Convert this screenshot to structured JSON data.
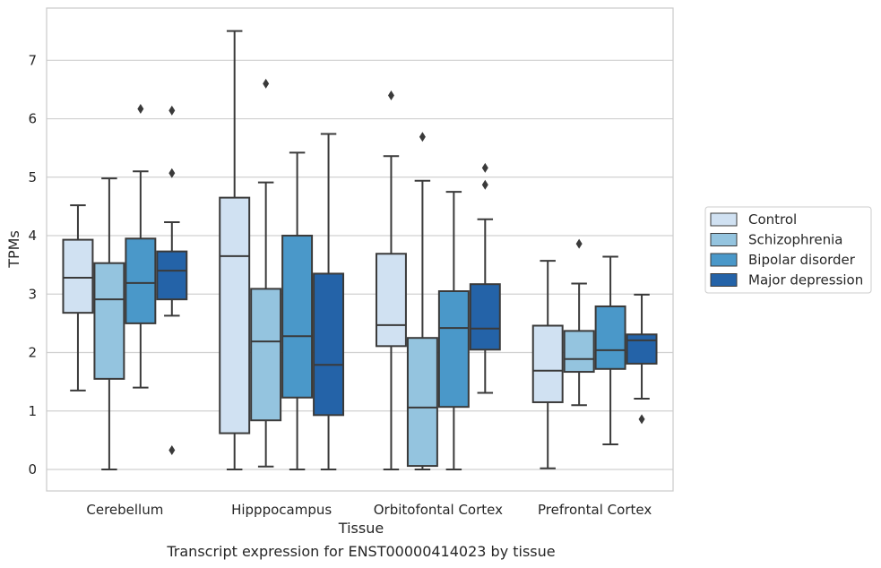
{
  "chart_data": {
    "type": "box",
    "xlabel": "Tissue",
    "ylabel": "TPMs",
    "caption": "Transcript expression for ENST00000414023 by tissue",
    "ylim": [
      -0.35,
      7.9
    ],
    "yticks": [
      0,
      1,
      2,
      3,
      4,
      5,
      6,
      7
    ],
    "grid": "horizontal",
    "legend_position": "right",
    "categories": [
      "Cerebellum",
      "Hipppocampus",
      "Orbitofontal Cortex",
      "Prefrontal Cortex"
    ],
    "series": [
      {
        "name": "Control",
        "color": "#d0e1f2",
        "boxes": [
          {
            "whisker_low": 1.35,
            "q1": 2.68,
            "median": 3.28,
            "q3": 3.93,
            "whisker_high": 4.52,
            "outliers": []
          },
          {
            "whisker_low": 0.0,
            "q1": 0.62,
            "median": 3.65,
            "q3": 4.65,
            "whisker_high": 7.5,
            "outliers": []
          },
          {
            "whisker_low": 0.0,
            "q1": 2.11,
            "median": 2.47,
            "q3": 3.69,
            "whisker_high": 5.36,
            "outliers": [
              6.4
            ]
          },
          {
            "whisker_low": 0.02,
            "q1": 1.15,
            "median": 1.69,
            "q3": 2.46,
            "whisker_high": 3.57,
            "outliers": []
          }
        ]
      },
      {
        "name": "Schizophrenia",
        "color": "#94c4df",
        "boxes": [
          {
            "whisker_low": 0.0,
            "q1": 1.55,
            "median": 2.91,
            "q3": 3.53,
            "whisker_high": 4.98,
            "outliers": []
          },
          {
            "whisker_low": 0.05,
            "q1": 0.84,
            "median": 2.19,
            "q3": 3.09,
            "whisker_high": 4.91,
            "outliers": [
              6.6
            ]
          },
          {
            "whisker_low": 0.0,
            "q1": 0.06,
            "median": 1.06,
            "q3": 2.25,
            "whisker_high": 4.94,
            "outliers": [
              5.69
            ]
          },
          {
            "whisker_low": 1.1,
            "q1": 1.67,
            "median": 1.89,
            "q3": 2.37,
            "whisker_high": 3.18,
            "outliers": [
              3.86
            ]
          }
        ]
      },
      {
        "name": "Bipolar disorder",
        "color": "#4a98c9",
        "boxes": [
          {
            "whisker_low": 1.4,
            "q1": 2.5,
            "median": 3.19,
            "q3": 3.95,
            "whisker_high": 5.1,
            "outliers": [
              6.17
            ]
          },
          {
            "whisker_low": 0.0,
            "q1": 1.23,
            "median": 2.28,
            "q3": 4.0,
            "whisker_high": 5.42,
            "outliers": []
          },
          {
            "whisker_low": 0.0,
            "q1": 1.07,
            "median": 2.42,
            "q3": 3.05,
            "whisker_high": 4.75,
            "outliers": []
          },
          {
            "whisker_low": 0.43,
            "q1": 1.72,
            "median": 2.04,
            "q3": 2.79,
            "whisker_high": 3.64,
            "outliers": []
          }
        ]
      },
      {
        "name": "Major depression",
        "color": "#2463a8",
        "boxes": [
          {
            "whisker_low": 2.63,
            "q1": 2.91,
            "median": 3.4,
            "q3": 3.73,
            "whisker_high": 4.23,
            "outliers": [
              6.14,
              5.07,
              0.33
            ]
          },
          {
            "whisker_low": 0.0,
            "q1": 0.93,
            "median": 1.79,
            "q3": 3.35,
            "whisker_high": 5.74,
            "outliers": []
          },
          {
            "whisker_low": 1.31,
            "q1": 2.05,
            "median": 2.41,
            "q3": 3.17,
            "whisker_high": 4.28,
            "outliers": [
              5.16,
              4.87
            ]
          },
          {
            "whisker_low": 1.21,
            "q1": 1.81,
            "median": 2.21,
            "q3": 2.31,
            "whisker_high": 2.99,
            "outliers": [
              0.86
            ]
          }
        ]
      }
    ]
  }
}
